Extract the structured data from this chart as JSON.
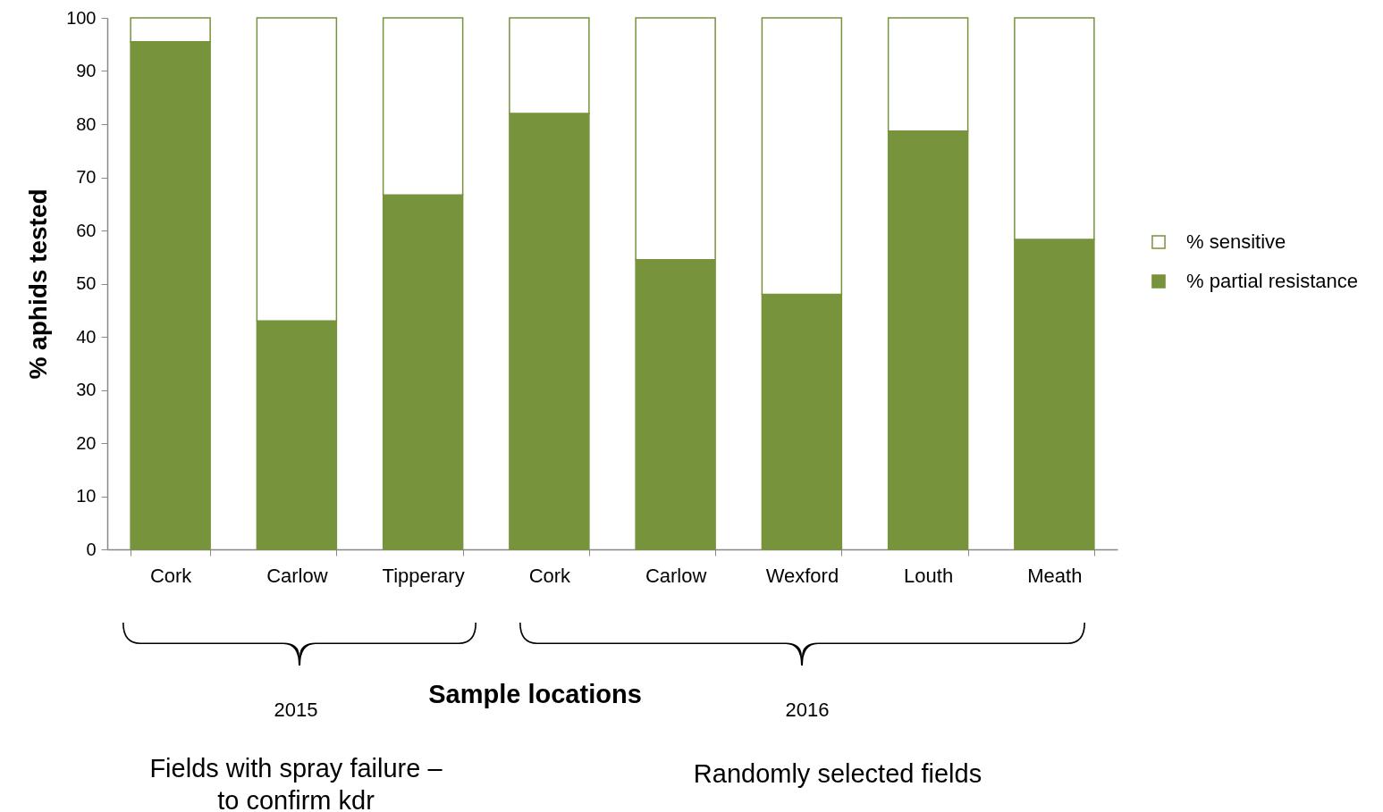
{
  "chart_data": {
    "type": "bar",
    "stacked": true,
    "ylabel": "% aphids tested",
    "xlabel": "Sample locations",
    "categories": [
      "Cork",
      "Carlow",
      "Tipperary",
      "Cork",
      "Carlow",
      "Wexford",
      "Louth",
      "Meath"
    ],
    "series": [
      {
        "name": "% partial resistance",
        "color": "#77933c",
        "values": [
          95.5,
          43,
          66.7,
          82,
          54.5,
          48,
          78.7,
          58.3
        ]
      },
      {
        "name": "% sensitive",
        "color": "#ffffff",
        "values": [
          4.5,
          57,
          33.3,
          18,
          45.5,
          52,
          21.3,
          41.7
        ]
      }
    ],
    "ylim": [
      0,
      100
    ],
    "yticks": [
      0,
      10,
      20,
      30,
      40,
      50,
      60,
      70,
      80,
      90,
      100
    ],
    "grid": false,
    "legend": "right",
    "annotations": [
      "2015",
      "2016",
      "Fields with spray failure – to confirm kdr",
      "Randomly selected fields"
    ]
  }
}
